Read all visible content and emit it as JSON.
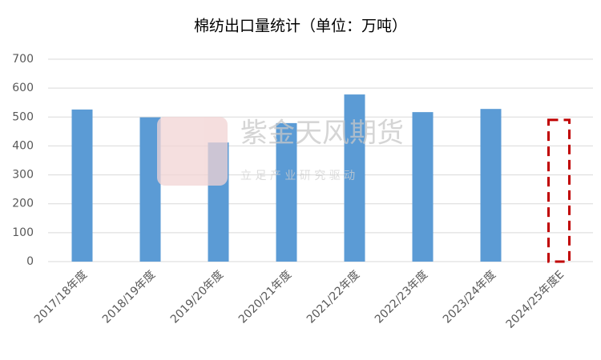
{
  "chart_data": {
    "type": "bar",
    "title": "棉纺出口量统计（单位：万吨）",
    "categories": [
      "2017/18年度",
      "2018/19年度",
      "2019/20年度",
      "2020/21年度",
      "2021/22年度",
      "2022/23年度",
      "2023/24年度",
      "2024/25年度E"
    ],
    "values": [
      526,
      499,
      412,
      479,
      578,
      517,
      528,
      490
    ],
    "color": "#5b9bd5",
    "bar_styles": [
      "solid",
      "solid",
      "solid",
      "solid",
      "solid",
      "solid",
      "solid",
      "dashed"
    ],
    "dashed_color": "#c00000",
    "ylim": [
      0,
      700
    ],
    "yticks": [
      0,
      100,
      200,
      300,
      400,
      500,
      600,
      700
    ],
    "grid": true,
    "watermark": {
      "name": "紫金天风期货",
      "slogan": "立 足 产 业 研 究 驱 动"
    }
  }
}
